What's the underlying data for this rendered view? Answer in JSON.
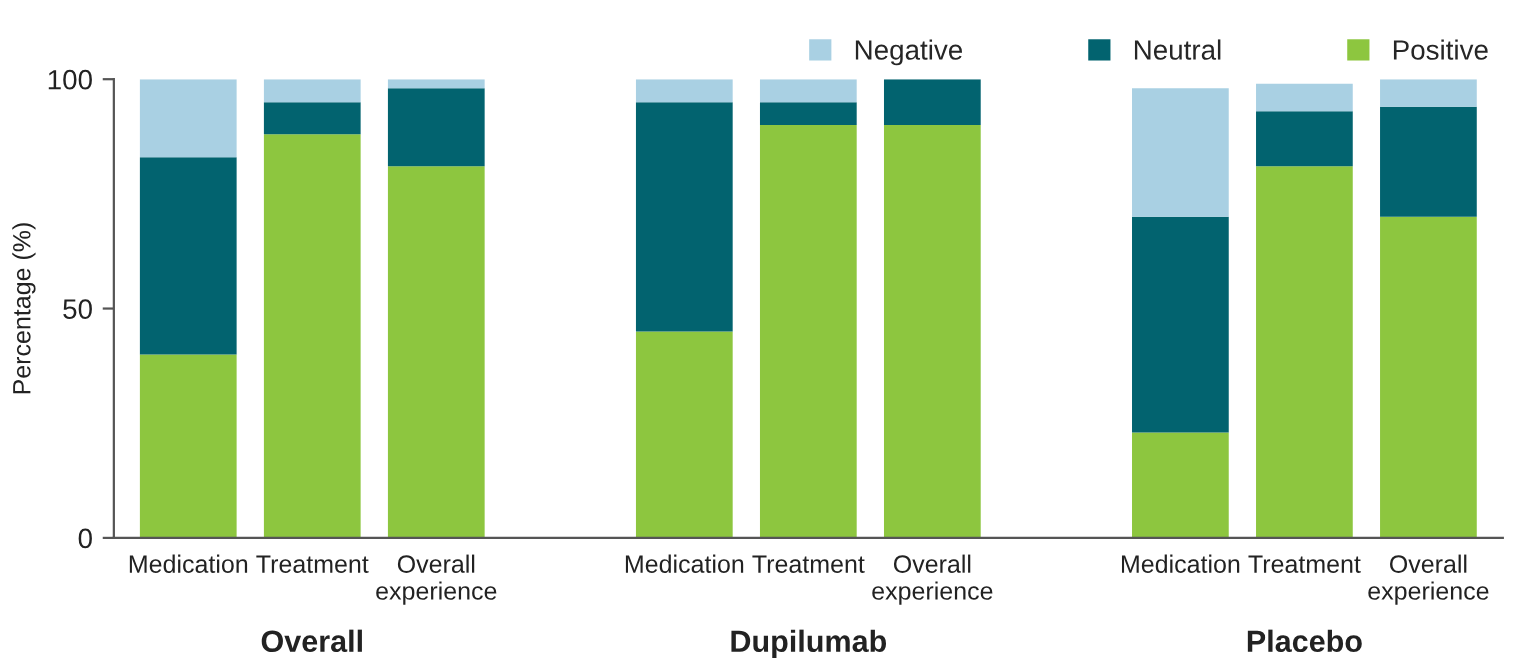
{
  "chart_data": {
    "type": "bar",
    "stacked": true,
    "ylabel": "Percentage (%)",
    "categories": [
      "Medication",
      "Treatment",
      "Overall\nexperience",
      null,
      "Medication",
      "Treatment",
      "Overall\nexperience",
      null,
      "Medication",
      "Treatment",
      "Overall\nexperience"
    ],
    "series": [
      {
        "name": "Positive",
        "color": "#8dc63f",
        "values": [
          40,
          88,
          81,
          null,
          45,
          90,
          90,
          null,
          23,
          81,
          70
        ]
      },
      {
        "name": "Neutral",
        "color": "#02636f",
        "values": [
          43,
          7,
          17,
          null,
          50,
          5,
          10,
          null,
          47,
          12,
          24
        ]
      },
      {
        "name": "Negative",
        "color": "#a9d0e3",
        "values": [
          17,
          5,
          2,
          null,
          5,
          5,
          0,
          null,
          28,
          6,
          6
        ]
      }
    ],
    "annotations": [
      "Overall",
      "Dupilumab",
      "Placebo"
    ],
    "ylim": [
      0,
      100
    ],
    "yticks": [
      0,
      50,
      100
    ],
    "grid": false,
    "legend": "top right"
  }
}
